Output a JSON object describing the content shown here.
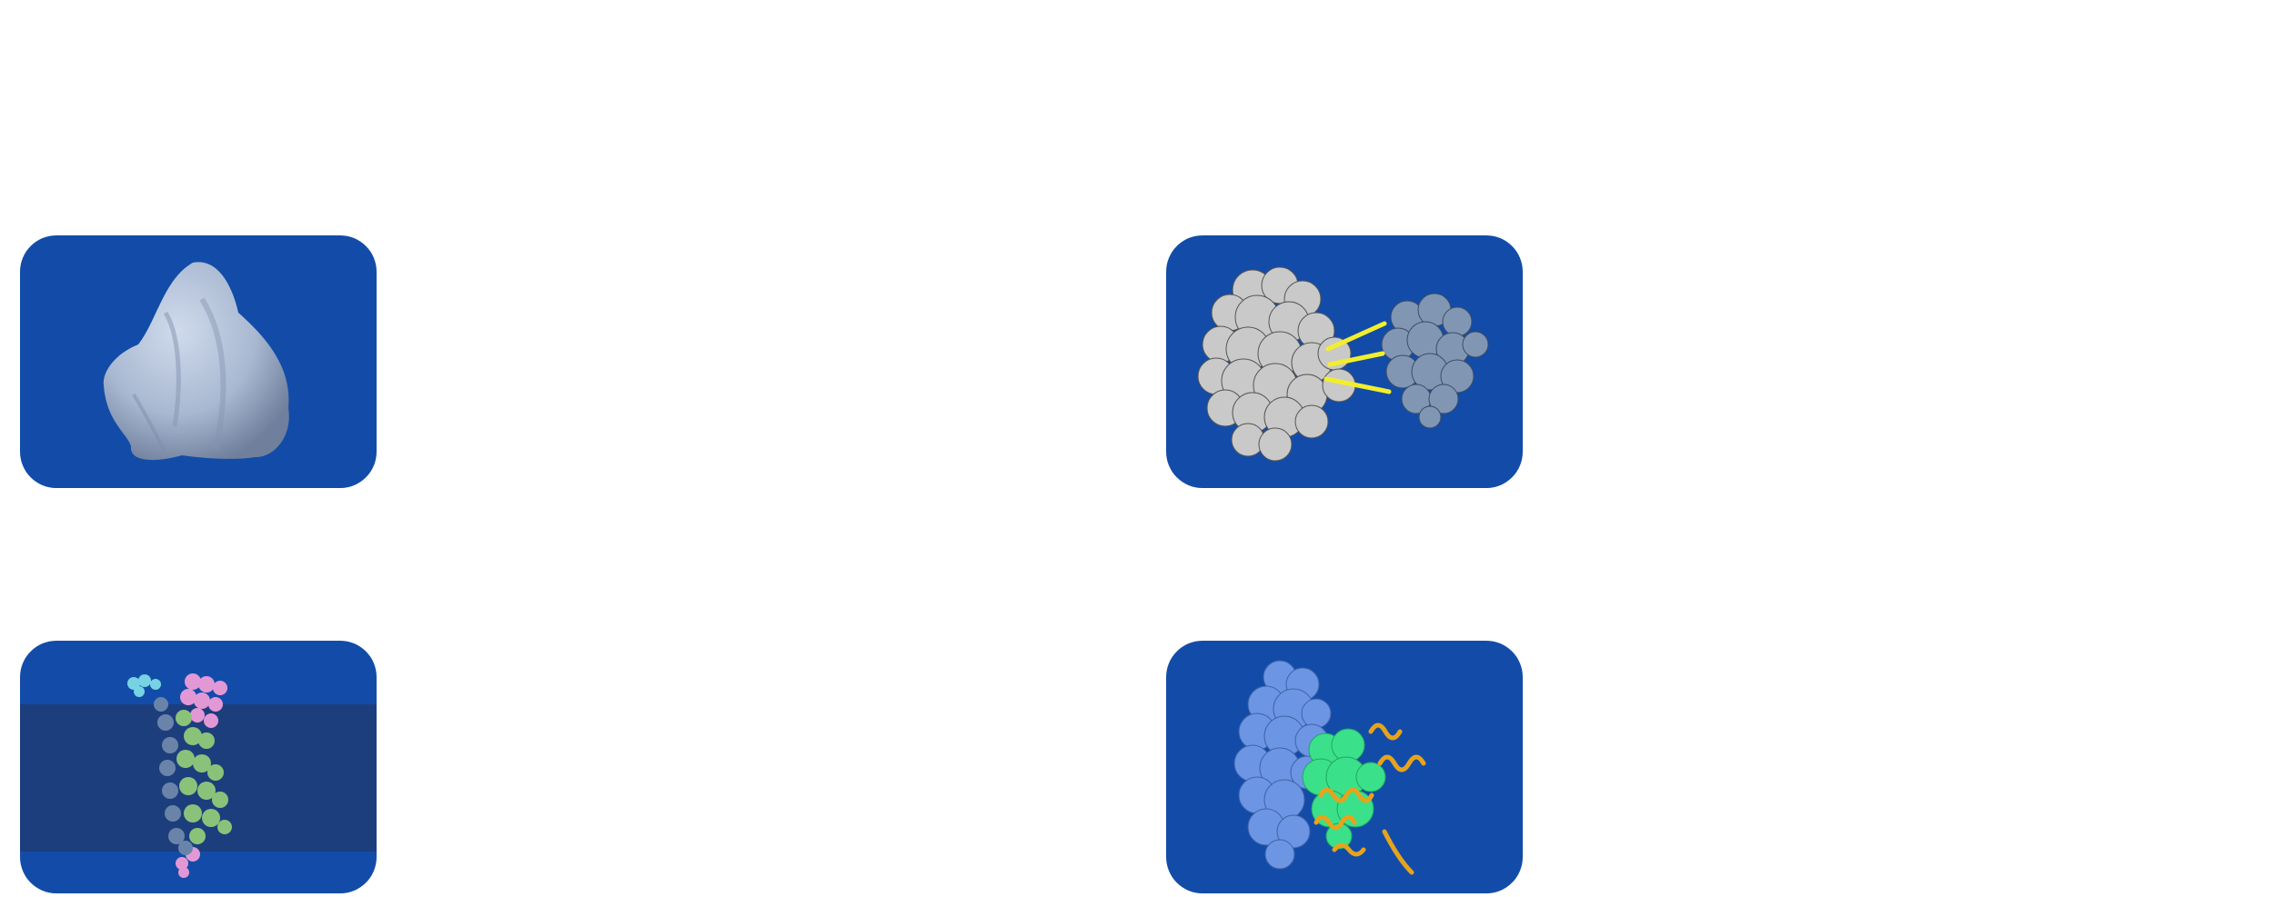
{
  "colors": {
    "card_background": "#124ca8",
    "membrane_band": "#1d3e7d",
    "density_map": "#a9b8d1",
    "protein_a": "#c9c9c9",
    "protein_b": "#8196b3",
    "crosslinks": "#f3ee2c",
    "receptor_cyan": "#77d3e4",
    "receptor_pink": "#e398d6",
    "receptor_green": "#8bc27a",
    "receptor_blue": "#6a84a9",
    "complex_blue_surface": "#6c95e3",
    "complex_green_surface": "#3be08a",
    "complex_ribbon": "#e6a31d"
  },
  "tiles": [
    {
      "icon": "density-map-icon"
    },
    {
      "icon": "crosslinked-proteins-icon"
    },
    {
      "icon": "membrane-protein-icon"
    },
    {
      "icon": "protein-complex-icon"
    }
  ]
}
